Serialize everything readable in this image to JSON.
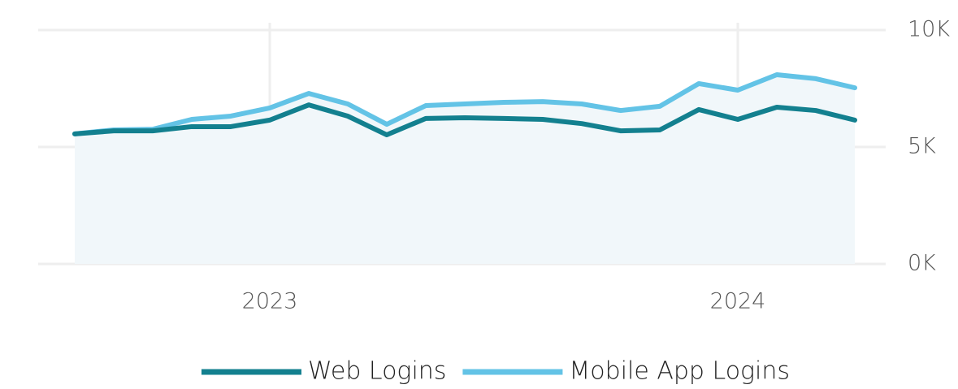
{
  "chart_data": {
    "type": "line",
    "x": [
      "2022-08",
      "2022-09",
      "2022-10",
      "2022-11",
      "2022-12",
      "2023-01",
      "2023-02",
      "2023-03",
      "2023-04",
      "2023-05",
      "2023-06",
      "2023-07",
      "2023-08",
      "2023-09",
      "2023-10",
      "2023-11",
      "2023-12",
      "2024-01",
      "2024-02",
      "2024-03",
      "2024-04"
    ],
    "series": [
      {
        "name": "Web Logins",
        "color": "#13808f",
        "values": [
          5560,
          5690,
          5690,
          5870,
          5870,
          6150,
          6800,
          6320,
          5520,
          6220,
          6250,
          6220,
          6180,
          6000,
          5690,
          5730,
          6600,
          6180,
          6700,
          6560,
          6150
        ]
      },
      {
        "name": "Mobile App Logins",
        "color": "#63c3e6",
        "values": [
          5560,
          5730,
          5760,
          6180,
          6320,
          6670,
          7290,
          6840,
          5970,
          6770,
          6840,
          6910,
          6940,
          6840,
          6560,
          6740,
          7710,
          7430,
          8090,
          7920,
          7530
        ]
      }
    ],
    "xlim": [
      "2022-07",
      "2024-05"
    ],
    "xticks": [
      {
        "value": "2023-01",
        "label": "2023"
      },
      {
        "value": "2024-01",
        "label": "2024"
      }
    ],
    "ylim": [
      0,
      10000
    ],
    "yticks": [
      {
        "value": 0,
        "label": "0K"
      },
      {
        "value": 5000,
        "label": "5K"
      },
      {
        "value": 10000,
        "label": "10K"
      }
    ],
    "grid": true,
    "legend": "bottom"
  }
}
